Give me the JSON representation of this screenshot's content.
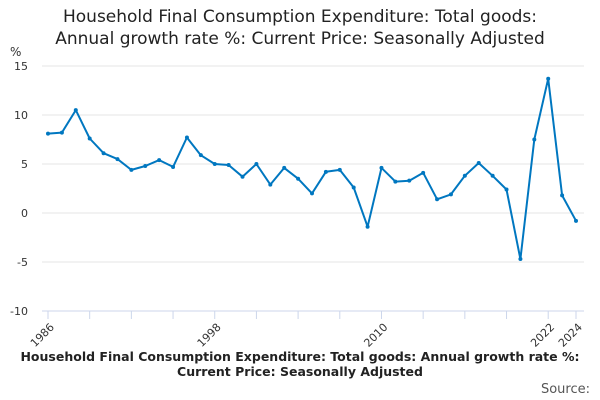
{
  "chart_data": {
    "type": "line",
    "title_lines": [
      "Household Final Consumption Expenditure: Total goods:",
      "Annual growth rate %: Current Price: Seasonally Adjusted"
    ],
    "ylabel": "%",
    "ylim": [
      -10,
      15
    ],
    "yticks": [
      -10,
      -5,
      0,
      5,
      10,
      15
    ],
    "xticks_labeled": [
      1986,
      1998,
      2010,
      2022,
      2024
    ],
    "grid": true,
    "color": "#0077c0",
    "x": [
      1986,
      1987,
      1988,
      1989,
      1990,
      1991,
      1992,
      1993,
      1994,
      1995,
      1996,
      1997,
      1998,
      1999,
      2000,
      2001,
      2002,
      2003,
      2004,
      2005,
      2006,
      2007,
      2008,
      2009,
      2010,
      2011,
      2012,
      2013,
      2014,
      2015,
      2016,
      2017,
      2018,
      2019,
      2020,
      2021,
      2022,
      2023,
      2024
    ],
    "values": [
      8.1,
      8.2,
      10.5,
      7.6,
      6.1,
      5.5,
      4.4,
      4.8,
      5.4,
      4.7,
      7.7,
      5.9,
      5.0,
      4.9,
      3.7,
      5.0,
      2.9,
      4.6,
      3.5,
      2.0,
      4.2,
      4.4,
      2.6,
      -1.4,
      4.6,
      3.2,
      3.3,
      4.1,
      1.4,
      1.9,
      3.8,
      5.1,
      3.8,
      2.4,
      -4.7,
      7.5,
      13.7,
      1.8,
      -0.8
    ]
  },
  "footer": {
    "series_title": "Household Final Consumption Expenditure: Total goods: Annual growth rate %: Current Price: Seasonally Adjusted",
    "source_label": "Source:"
  }
}
